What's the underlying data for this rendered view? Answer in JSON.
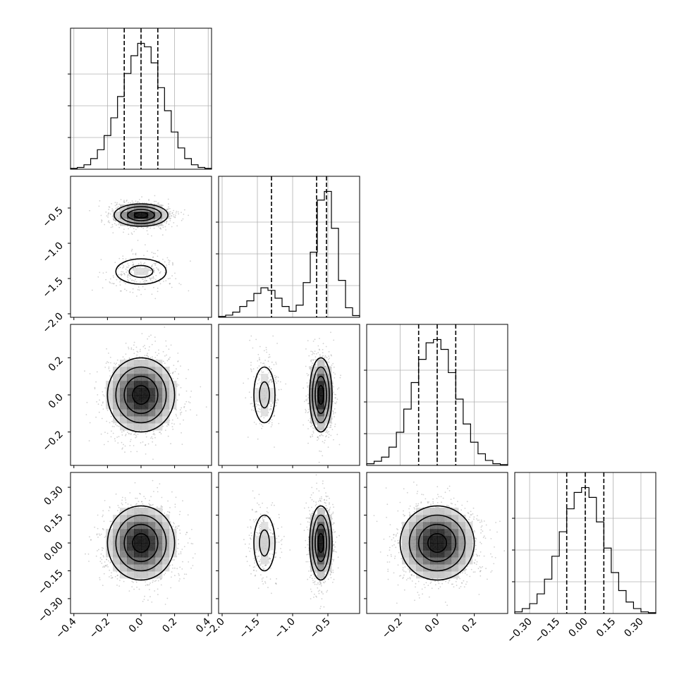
{
  "chart_data": {
    "type": "corner",
    "title": "",
    "parameters": [
      {
        "label": "",
        "range": [
          -0.42,
          0.42
        ],
        "ticks": [
          -0.4,
          -0.2,
          0.0,
          0.2,
          0.4
        ],
        "tick_labels": [
          "−0.4",
          "−0.2",
          "0.0",
          "0.2",
          "0.4"
        ],
        "quantiles": [
          -0.1,
          0.0,
          0.1
        ]
      },
      {
        "label": "",
        "range": [
          -2.05,
          -0.05
        ],
        "ticks": [
          -2.0,
          -1.5,
          -1.0,
          -0.5
        ],
        "tick_labels": [
          "−2.0",
          "−1.5",
          "−1.0",
          "−0.5"
        ],
        "quantiles": [
          -1.3,
          -0.66,
          -0.52
        ]
      },
      {
        "label": "",
        "range": [
          -0.38,
          0.38
        ],
        "ticks": [
          -0.2,
          0.0,
          0.2
        ],
        "tick_labels": [
          "−0.2",
          "0.0",
          "0.2"
        ],
        "quantiles": [
          -0.1,
          0.0,
          0.1
        ]
      },
      {
        "label": "",
        "range": [
          -0.38,
          0.38
        ],
        "ticks": [
          -0.3,
          -0.15,
          0.0,
          0.15,
          0.3
        ],
        "tick_labels": [
          "−0.30",
          "−0.15",
          "0.00",
          "0.15",
          "0.30"
        ],
        "quantiles": [
          -0.1,
          0.0,
          0.1
        ]
      }
    ],
    "histograms": [
      {
        "param": 0,
        "bins": [
          -0.42,
          -0.38,
          -0.34,
          -0.3,
          -0.26,
          -0.22,
          -0.18,
          -0.14,
          -0.1,
          -0.06,
          -0.02,
          0.02,
          0.06,
          0.1,
          0.14,
          0.18,
          0.22,
          0.26,
          0.3,
          0.34,
          0.38,
          0.42
        ],
        "counts": [
          1,
          2,
          5,
          12,
          22,
          38,
          58,
          82,
          108,
          128,
          142,
          138,
          120,
          92,
          66,
          42,
          24,
          12,
          5,
          2,
          1
        ]
      },
      {
        "param": 1,
        "bins": [
          -2.05,
          -1.95,
          -1.85,
          -1.75,
          -1.65,
          -1.55,
          -1.45,
          -1.35,
          -1.25,
          -1.15,
          -1.05,
          -0.95,
          -0.85,
          -0.75,
          -0.65,
          -0.55,
          -0.45,
          -0.35,
          -0.25,
          -0.15,
          -0.05
        ],
        "counts": [
          2,
          5,
          12,
          25,
          38,
          55,
          68,
          62,
          44,
          25,
          14,
          28,
          80,
          150,
          270,
          290,
          205,
          85,
          22,
          4
        ]
      },
      {
        "param": 2,
        "bins": [
          -0.38,
          -0.34,
          -0.3,
          -0.26,
          -0.22,
          -0.18,
          -0.14,
          -0.1,
          -0.06,
          -0.02,
          0.02,
          0.06,
          0.1,
          0.14,
          0.18,
          0.22,
          0.26,
          0.3,
          0.34,
          0.38
        ],
        "counts": [
          2,
          5,
          10,
          22,
          40,
          68,
          100,
          128,
          148,
          152,
          140,
          112,
          80,
          50,
          28,
          14,
          6,
          2,
          1
        ]
      },
      {
        "param": 3,
        "bins": [
          -0.38,
          -0.34,
          -0.3,
          -0.26,
          -0.22,
          -0.18,
          -0.14,
          -0.1,
          -0.06,
          -0.02,
          0.02,
          0.06,
          0.1,
          0.14,
          0.18,
          0.22,
          0.26,
          0.3,
          0.34,
          0.38
        ],
        "counts": [
          2,
          6,
          12,
          24,
          42,
          70,
          100,
          128,
          148,
          154,
          142,
          112,
          80,
          50,
          28,
          14,
          6,
          2,
          1
        ]
      }
    ],
    "joint": [
      {
        "x": 0,
        "y": 1,
        "clusters": [
          {
            "center": [
              0.0,
              -0.6
            ],
            "sd": [
              0.08,
              0.08
            ],
            "weight": 0.8
          },
          {
            "center": [
              0.0,
              -1.4
            ],
            "sd": [
              0.1,
              0.12
            ],
            "weight": 0.2
          }
        ]
      },
      {
        "x": 0,
        "y": 2,
        "clusters": [
          {
            "center": [
              0.0,
              0.0
            ],
            "sd": [
              0.1,
              0.1
            ],
            "weight": 1.0
          }
        ]
      },
      {
        "x": 1,
        "y": 2,
        "clusters": [
          {
            "center": [
              -0.6,
              0.0
            ],
            "sd": [
              0.08,
              0.1
            ],
            "weight": 0.8
          },
          {
            "center": [
              -1.4,
              0.0
            ],
            "sd": [
              0.1,
              0.1
            ],
            "weight": 0.2
          }
        ]
      },
      {
        "x": 0,
        "y": 3,
        "clusters": [
          {
            "center": [
              0.0,
              0.0
            ],
            "sd": [
              0.1,
              0.1
            ],
            "weight": 1.0
          }
        ]
      },
      {
        "x": 1,
        "y": 3,
        "clusters": [
          {
            "center": [
              -0.6,
              0.0
            ],
            "sd": [
              0.08,
              0.1
            ],
            "weight": 0.8
          },
          {
            "center": [
              -1.4,
              0.0
            ],
            "sd": [
              0.1,
              0.1
            ],
            "weight": 0.2
          }
        ]
      },
      {
        "x": 2,
        "y": 3,
        "clusters": [
          {
            "center": [
              0.0,
              0.0
            ],
            "sd": [
              0.1,
              0.1
            ],
            "weight": 1.0
          }
        ]
      }
    ],
    "grid": true,
    "contour_levels": [
      "0.5 sigma",
      "1 sigma",
      "1.5 sigma",
      "2 sigma"
    ],
    "colors": {
      "ink": "#000000",
      "scatter": "#9a9a9a",
      "grid": "#b0b0b0"
    }
  }
}
